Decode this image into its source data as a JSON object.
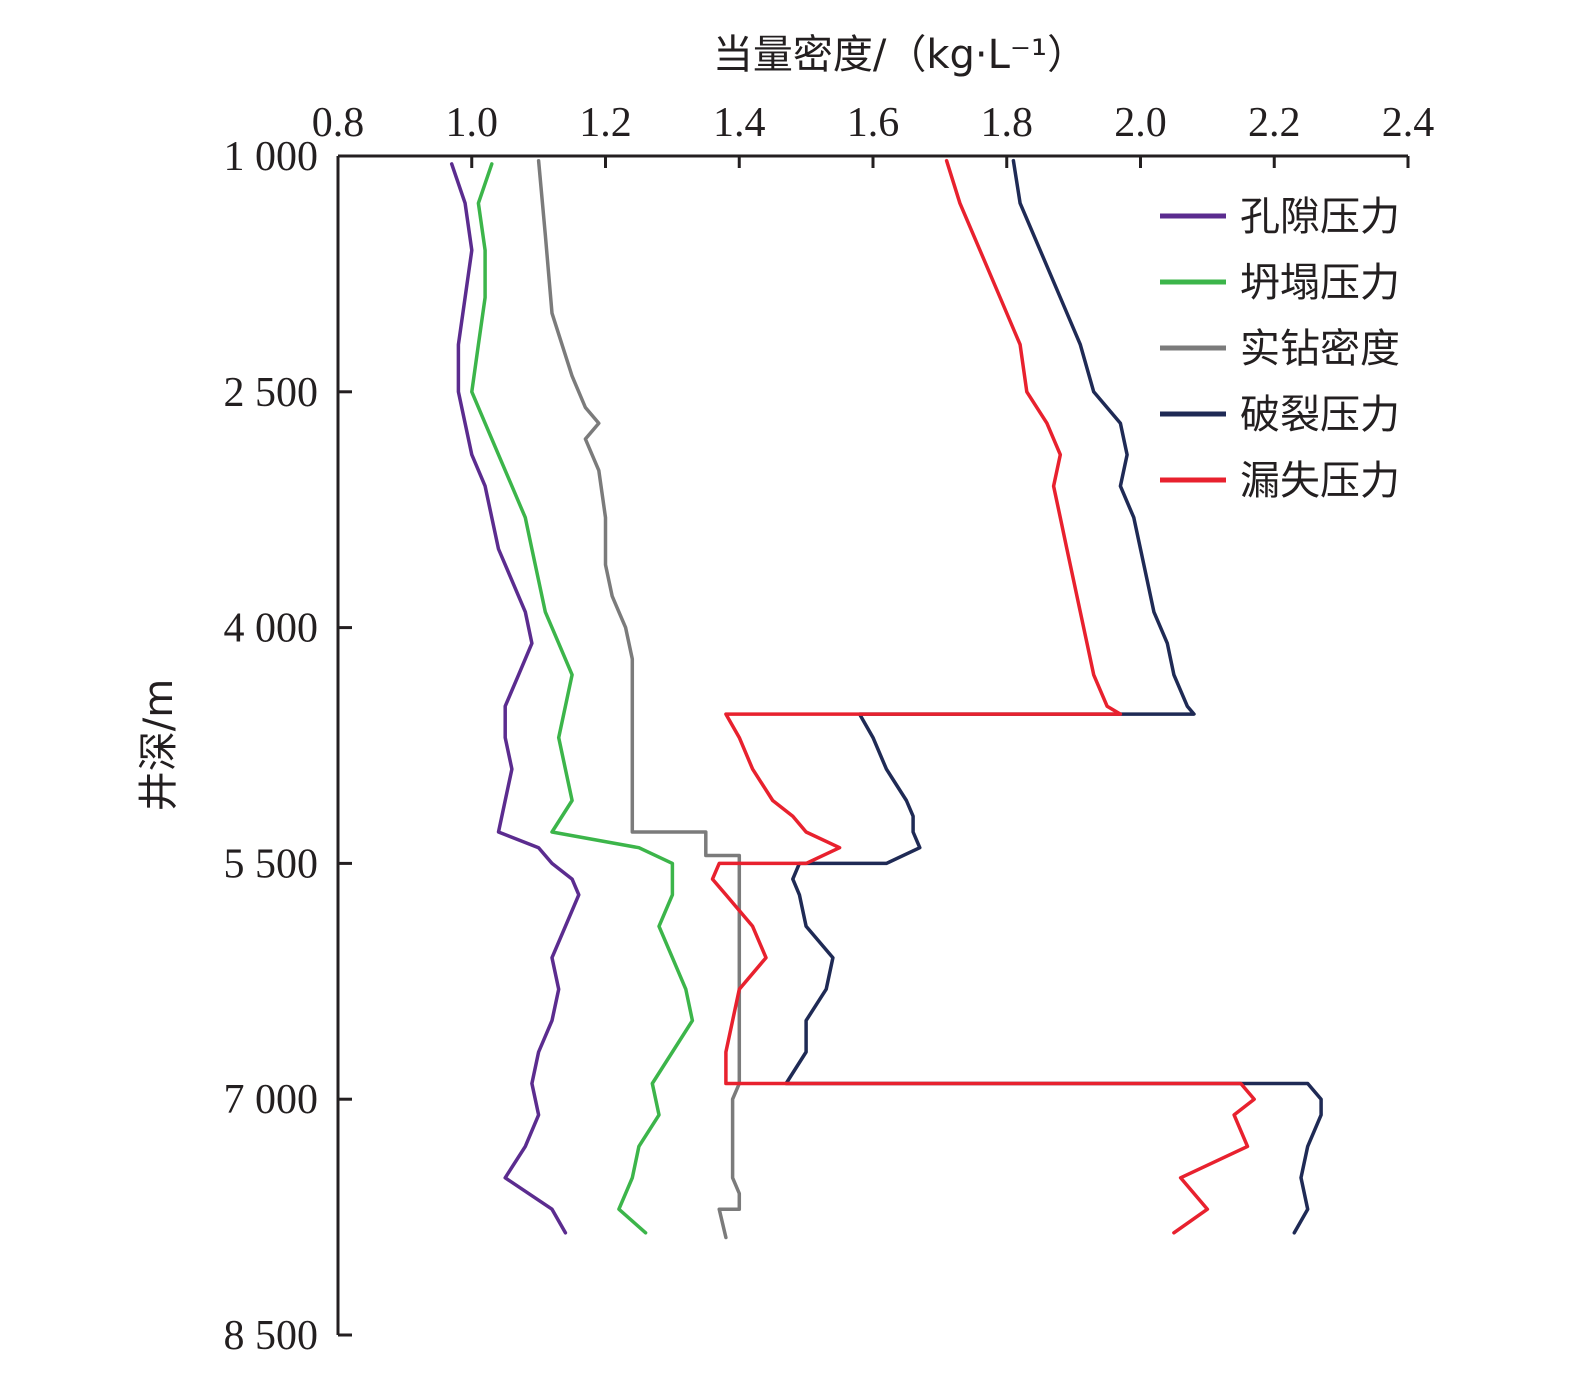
{
  "chart_data": {
    "type": "line",
    "xlabel": "当量密度/（kg·L⁻¹）",
    "ylabel": "井深/m",
    "xlim": [
      0.8,
      2.4
    ],
    "ylim": [
      1000,
      8500
    ],
    "y_inverted": true,
    "x_axis_position": "top",
    "x_ticks": [
      0.8,
      1.0,
      1.2,
      1.4,
      1.6,
      1.8,
      2.0,
      2.2,
      2.4
    ],
    "x_tick_labels": [
      "0.8",
      "1.0",
      "1.2",
      "1.4",
      "1.6",
      "1.8",
      "2.0",
      "2.2",
      "2.4"
    ],
    "y_ticks": [
      1000,
      2500,
      4000,
      5500,
      7000,
      8500
    ],
    "y_tick_labels": [
      "1 000",
      "2 500",
      "4 000",
      "5 500",
      "7 000",
      "8 500"
    ],
    "grid": false,
    "legend_position": "top-right",
    "series": [
      {
        "name": "孔隙压力",
        "color": "#5b2c8f",
        "depth": [
          1050,
          1300,
          1600,
          1900,
          2200,
          2500,
          2700,
          2900,
          3100,
          3300,
          3500,
          3700,
          3900,
          4100,
          4300,
          4500,
          4700,
          4900,
          5100,
          5300,
          5400,
          5500,
          5600,
          5700,
          5900,
          6100,
          6300,
          6500,
          6700,
          6900,
          7100,
          7300,
          7500,
          7700,
          7850
        ],
        "value": [
          0.97,
          0.99,
          1.0,
          0.99,
          0.98,
          0.98,
          0.99,
          1.0,
          1.02,
          1.03,
          1.04,
          1.06,
          1.08,
          1.09,
          1.07,
          1.05,
          1.05,
          1.06,
          1.05,
          1.04,
          1.1,
          1.12,
          1.15,
          1.16,
          1.14,
          1.12,
          1.13,
          1.12,
          1.1,
          1.09,
          1.1,
          1.08,
          1.05,
          1.12,
          1.14
        ]
      },
      {
        "name": "坍塌压力",
        "color": "#3cb54a",
        "depth": [
          1050,
          1300,
          1600,
          1900,
          2200,
          2500,
          2700,
          2900,
          3100,
          3300,
          3500,
          3700,
          3900,
          4100,
          4300,
          4500,
          4700,
          4900,
          5100,
          5300,
          5400,
          5500,
          5600,
          5700,
          5900,
          6100,
          6300,
          6500,
          6700,
          6900,
          7100,
          7300,
          7500,
          7700,
          7850
        ],
        "value": [
          1.03,
          1.01,
          1.02,
          1.02,
          1.01,
          1.0,
          1.02,
          1.04,
          1.06,
          1.08,
          1.09,
          1.1,
          1.11,
          1.13,
          1.15,
          1.14,
          1.13,
          1.14,
          1.15,
          1.12,
          1.25,
          1.3,
          1.3,
          1.3,
          1.28,
          1.3,
          1.32,
          1.33,
          1.3,
          1.27,
          1.28,
          1.25,
          1.24,
          1.22,
          1.26
        ]
      },
      {
        "name": "实钻密度",
        "color": "#7b7b7b",
        "depth": [
          1030,
          1500,
          2000,
          2400,
          2600,
          2700,
          2800,
          3000,
          3300,
          3600,
          3800,
          3900,
          4000,
          4200,
          4300,
          5300,
          5300,
          5400,
          5400,
          5450,
          5450,
          6900,
          7000,
          7500,
          7600,
          7700,
          7700,
          7880
        ],
        "value": [
          1.1,
          1.11,
          1.12,
          1.15,
          1.17,
          1.19,
          1.17,
          1.19,
          1.2,
          1.2,
          1.21,
          1.22,
          1.23,
          1.24,
          1.24,
          1.24,
          1.35,
          1.35,
          1.35,
          1.35,
          1.4,
          1.4,
          1.39,
          1.39,
          1.4,
          1.4,
          1.37,
          1.38
        ]
      },
      {
        "name": "破裂压力",
        "color": "#1f2a55",
        "depth": [
          1030,
          1300,
          1600,
          1900,
          2200,
          2500,
          2700,
          2900,
          3100,
          3300,
          3500,
          3700,
          3900,
          4100,
          4300,
          4500,
          4550,
          4550,
          4700,
          4900,
          5100,
          5200,
          5300,
          5400,
          5500,
          5500,
          5600,
          5700,
          5900,
          6100,
          6300,
          6500,
          6700,
          6900,
          6900,
          7000,
          7100,
          7300,
          7500,
          7700,
          7850
        ],
        "value": [
          1.81,
          1.82,
          1.85,
          1.88,
          1.91,
          1.93,
          1.97,
          1.98,
          1.97,
          1.99,
          2.0,
          2.01,
          2.02,
          2.04,
          2.05,
          2.07,
          2.08,
          1.58,
          1.6,
          1.62,
          1.65,
          1.66,
          1.66,
          1.67,
          1.62,
          1.49,
          1.48,
          1.49,
          1.5,
          1.54,
          1.53,
          1.5,
          1.5,
          1.47,
          2.25,
          2.27,
          2.27,
          2.25,
          2.24,
          2.25,
          2.23
        ]
      },
      {
        "name": "漏失压力",
        "color": "#e8212e",
        "depth": [
          1030,
          1300,
          1600,
          1900,
          2200,
          2500,
          2700,
          2900,
          3100,
          3300,
          3500,
          3700,
          3900,
          4100,
          4300,
          4500,
          4550,
          4550,
          4700,
          4900,
          5100,
          5200,
          5300,
          5400,
          5500,
          5500,
          5600,
          5700,
          5900,
          6100,
          6300,
          6500,
          6700,
          6900,
          6900,
          7000,
          7100,
          7300,
          7500,
          7700,
          7850
        ],
        "value": [
          1.71,
          1.73,
          1.76,
          1.79,
          1.82,
          1.83,
          1.86,
          1.88,
          1.87,
          1.88,
          1.89,
          1.9,
          1.91,
          1.92,
          1.93,
          1.95,
          1.97,
          1.38,
          1.4,
          1.42,
          1.45,
          1.48,
          1.5,
          1.55,
          1.5,
          1.37,
          1.36,
          1.38,
          1.42,
          1.44,
          1.4,
          1.39,
          1.38,
          1.38,
          2.15,
          2.17,
          2.14,
          2.16,
          2.06,
          2.1,
          2.05
        ]
      }
    ]
  }
}
